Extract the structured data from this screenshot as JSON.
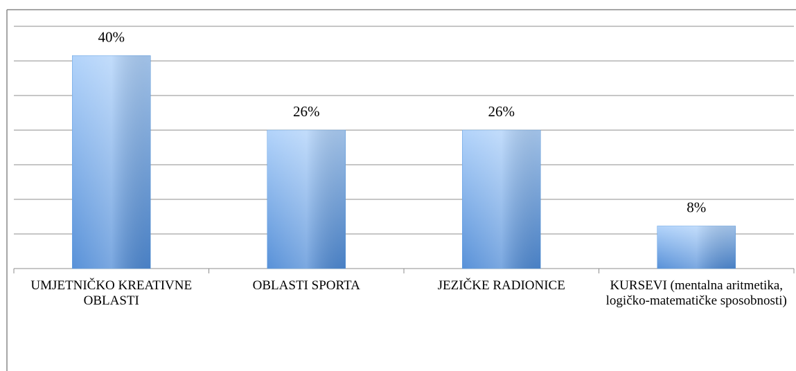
{
  "chart_data": {
    "type": "bar",
    "categories": [
      "UMJETNIČKO KREATIVNE OBLASTI",
      "OBLASTI SPORTA",
      "JEZIČKE RADIONICE",
      "KURSEVI (mentalna aritmetika, logičko-matematičke sposobnosti)"
    ],
    "values": [
      40,
      26,
      26,
      8
    ],
    "value_labels": [
      "40%",
      "26%",
      "26%",
      "8%"
    ],
    "color": "#5b9be0",
    "ylim": [
      0,
      45.5
    ],
    "yticks": [
      0,
      6.5,
      13,
      19.5,
      26,
      32.5,
      39,
      45.5
    ],
    "grid": true
  }
}
